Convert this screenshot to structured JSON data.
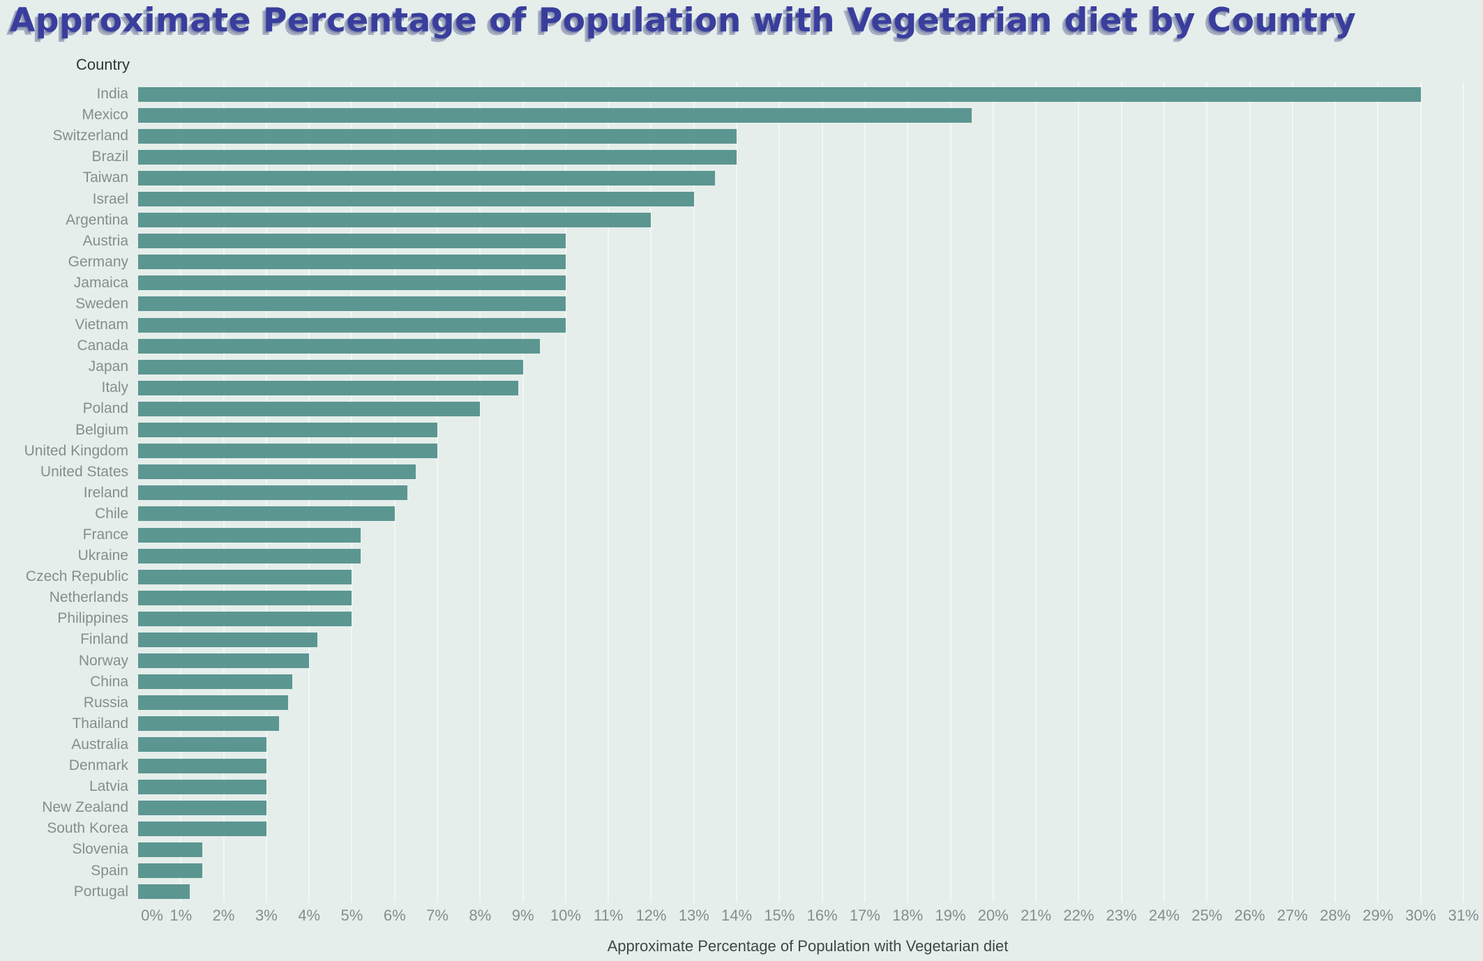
{
  "title": "Approximate Percentage of Population with Vegetarian diet by Country",
  "y_axis_header": "Country",
  "x_axis_title": "Approximate Percentage of Population with Vegetarian diet",
  "colors": {
    "bar": "#5c9691",
    "background": "#e5eeeb",
    "gridline": "#f2f7f5",
    "title_text": "#393e9d",
    "axis_text": "#858e8d",
    "header_text": "#2f3636"
  },
  "chart_data": {
    "type": "bar",
    "orientation": "horizontal",
    "title": "Approximate Percentage of Population with Vegetarian diet by Country",
    "xlabel": "Approximate Percentage of Population with Vegetarian diet",
    "ylabel": "Country",
    "xlim": [
      0,
      31
    ],
    "x_tick_step": 1,
    "x_tick_suffix": "%",
    "grid": true,
    "legend": false,
    "bar_color": "#5c9691",
    "categories": [
      "India",
      "Mexico",
      "Switzerland",
      "Brazil",
      "Taiwan",
      "Israel",
      "Argentina",
      "Austria",
      "Germany",
      "Jamaica",
      "Sweden",
      "Vietnam",
      "Canada",
      "Japan",
      "Italy",
      "Poland",
      "Belgium",
      "United Kingdom",
      "United States",
      "Ireland",
      "Chile",
      "France",
      "Ukraine",
      "Czech Republic",
      "Netherlands",
      "Philippines",
      "Finland",
      "Norway",
      "China",
      "Russia",
      "Thailand",
      "Australia",
      "Denmark",
      "Latvia",
      "New Zealand",
      "South Korea",
      "Slovenia",
      "Spain",
      "Portugal"
    ],
    "values": [
      30,
      19.5,
      14,
      14,
      13.5,
      13,
      12,
      10,
      10,
      10,
      10,
      10,
      9.4,
      9,
      8.9,
      8,
      7,
      7,
      6.5,
      6.3,
      6,
      5.2,
      5.2,
      5,
      5,
      5,
      4.2,
      4,
      3.6,
      3.5,
      3.3,
      3,
      3,
      3,
      3,
      3,
      1.5,
      1.5,
      1.2
    ]
  }
}
